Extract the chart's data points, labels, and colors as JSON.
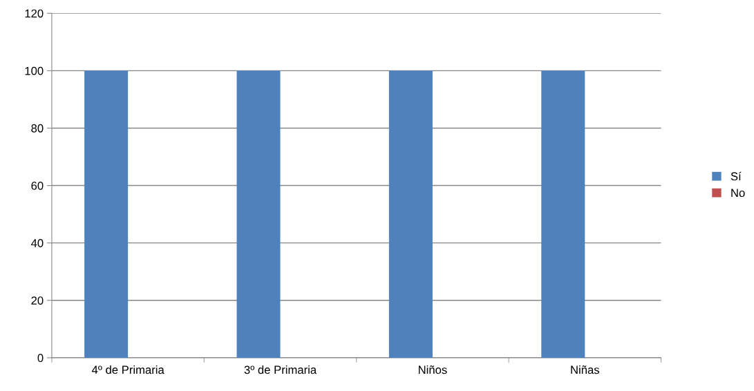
{
  "chart_data": {
    "type": "bar",
    "categories": [
      "4º de Primaria",
      "3º de Primaria",
      "Niños",
      "Niñas"
    ],
    "series": [
      {
        "name": "Sí",
        "color": "#4f81bd",
        "values": [
          100,
          100,
          100,
          100
        ]
      },
      {
        "name": "No",
        "color": "#c0504d",
        "values": [
          0,
          0,
          0,
          0
        ]
      }
    ],
    "ylim": [
      0,
      120
    ],
    "yticks": [
      0,
      20,
      40,
      60,
      80,
      100,
      120
    ],
    "grid": "y",
    "legend": "right"
  }
}
